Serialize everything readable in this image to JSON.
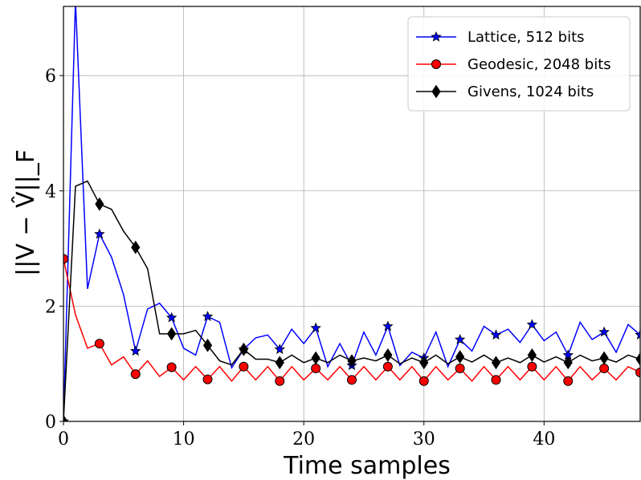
{
  "chart_data": {
    "type": "line",
    "xlabel": "Time samples",
    "ylabel": "||V − V̂||_F",
    "xlim": [
      0,
      48
    ],
    "ylim": [
      0,
      7.2
    ],
    "xticks": [
      0,
      10,
      20,
      30,
      40
    ],
    "yticks": [
      0,
      2,
      4,
      6
    ],
    "grid": true,
    "legend_position": "top-right",
    "series": [
      {
        "name": "Lattice, 512 bits",
        "color": "#0000ff",
        "marker": "star",
        "marker_every": 3,
        "values": [
          0.0,
          7.3,
          2.3,
          3.25,
          2.85,
          2.2,
          1.22,
          1.95,
          2.05,
          1.8,
          1.27,
          1.15,
          1.82,
          1.72,
          0.93,
          1.25,
          1.45,
          1.5,
          1.25,
          1.6,
          1.35,
          1.62,
          0.95,
          1.35,
          0.97,
          1.55,
          1.15,
          1.65,
          0.97,
          1.2,
          1.1,
          1.55,
          0.95,
          1.42,
          1.22,
          1.65,
          1.5,
          1.6,
          1.37,
          1.68,
          1.4,
          1.55,
          1.15,
          1.72,
          1.42,
          1.55,
          1.2,
          1.68,
          1.5
        ]
      },
      {
        "name": "Geodesic, 2048 bits",
        "color": "#ff0000",
        "marker": "circle",
        "marker_every": 3,
        "values": [
          2.82,
          1.85,
          1.27,
          1.35,
          0.98,
          1.12,
          0.82,
          1.05,
          0.78,
          0.94,
          0.72,
          0.95,
          0.73,
          0.95,
          0.7,
          0.95,
          0.72,
          0.95,
          0.7,
          0.95,
          0.72,
          0.92,
          0.72,
          0.95,
          0.72,
          0.95,
          0.72,
          0.95,
          0.72,
          0.95,
          0.7,
          0.95,
          0.72,
          0.92,
          0.7,
          0.95,
          0.72,
          0.95,
          0.72,
          0.95,
          0.72,
          0.95,
          0.7,
          0.95,
          0.72,
          0.92,
          0.72,
          0.95,
          0.85
        ]
      },
      {
        "name": "Givens, 1024 bits",
        "color": "#000000",
        "marker": "diamond",
        "marker_every": 3,
        "values": [
          0.0,
          4.08,
          4.17,
          3.77,
          3.68,
          3.3,
          3.02,
          2.65,
          1.52,
          1.52,
          1.52,
          1.58,
          1.32,
          1.05,
          0.98,
          1.25,
          1.08,
          1.08,
          1.02,
          1.15,
          1.02,
          1.1,
          1.02,
          1.15,
          1.05,
          1.1,
          1.05,
          1.15,
          1.0,
          1.1,
          1.02,
          1.15,
          1.0,
          1.12,
          1.03,
          1.15,
          1.02,
          1.1,
          1.02,
          1.15,
          1.03,
          1.12,
          1.02,
          1.15,
          1.05,
          1.1,
          1.03,
          1.15,
          1.08
        ]
      }
    ]
  }
}
